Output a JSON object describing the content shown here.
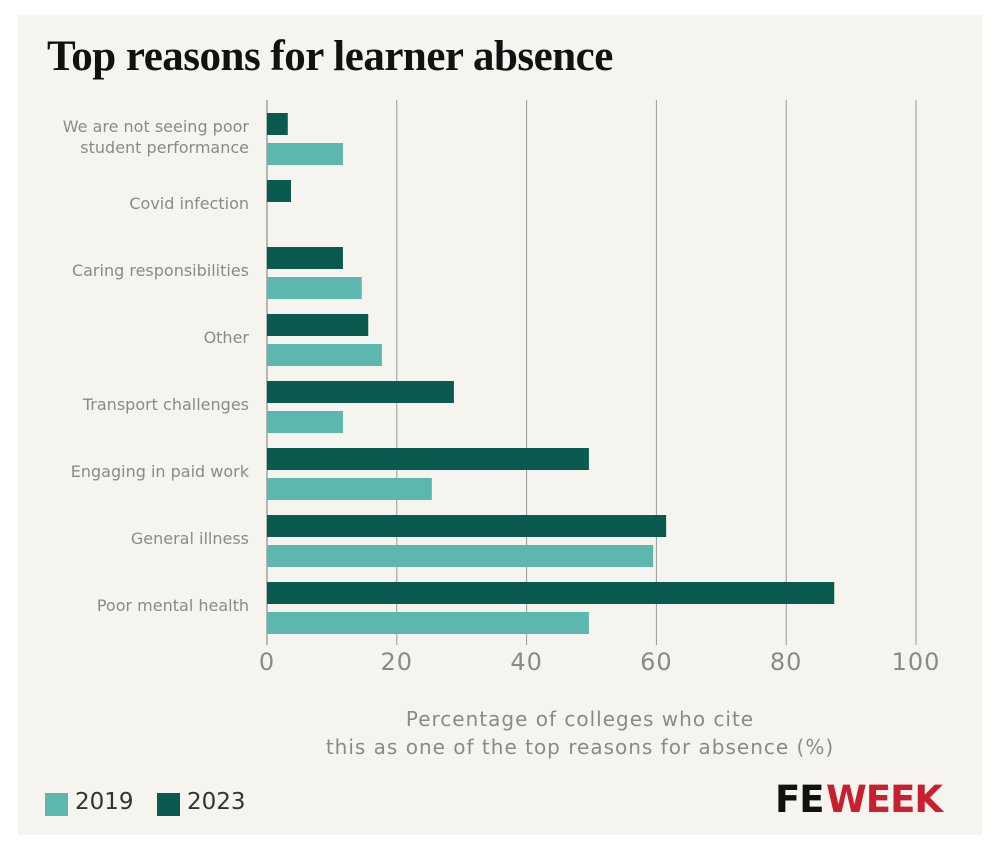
{
  "chart_data": {
    "type": "hbar",
    "title": "Top reasons for learner absence",
    "categories": [
      "We are not seeing poor\nstudent performance",
      "Covid infection",
      "Caring responsibilities",
      "Other",
      "Transport challenges",
      "Engaging in paid work",
      "General illness",
      "Poor mental health"
    ],
    "series": [
      {
        "name": "2019",
        "color": "#5cb8ae",
        "values": [
          11.7,
          null,
          14.6,
          17.7,
          11.7,
          25.4,
          59.5,
          49.6
        ]
      },
      {
        "name": "2023",
        "color": "#0b5a50",
        "values": [
          3.2,
          3.7,
          11.7,
          15.6,
          28.8,
          49.6,
          61.5,
          87.4
        ]
      }
    ],
    "x_label": "Percentage of colleges who cite\nthis as one of the top reasons for absence (%)",
    "xlim": [
      0,
      100
    ],
    "xticks": [
      0,
      20,
      40,
      60,
      80,
      100
    ],
    "grid": true,
    "legend_position": "bottom-left",
    "brand": [
      "FE",
      "WEEK"
    ]
  }
}
